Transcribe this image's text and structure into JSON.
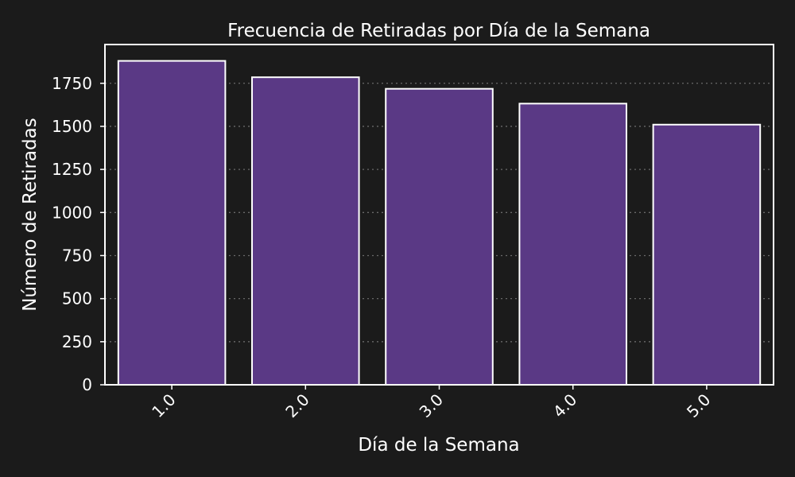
{
  "colors": {
    "background": "#1b1b1b",
    "bar_fill": "#5a3985",
    "bar_edge": "#ffffff",
    "text": "#ffffff",
    "grid": "#6a6a6a"
  },
  "chart_data": {
    "type": "bar",
    "title": "Frecuencia de Retiradas por Día de la Semana",
    "xlabel": "Día de la Semana",
    "ylabel": "Número de Retiradas",
    "categories": [
      "1.0",
      "2.0",
      "3.0",
      "4.0",
      "5.0"
    ],
    "values": [
      1880,
      1785,
      1718,
      1632,
      1510
    ],
    "ylim": [
      0,
      1975
    ],
    "yticks": [
      0,
      250,
      500,
      750,
      1000,
      1250,
      1500,
      1750
    ],
    "ytick_labels": [
      "0",
      "250",
      "500",
      "750",
      "1000",
      "1250",
      "1500",
      "1750"
    ],
    "grid": {
      "axis": "y",
      "style": "dotted"
    },
    "legend": "none"
  }
}
